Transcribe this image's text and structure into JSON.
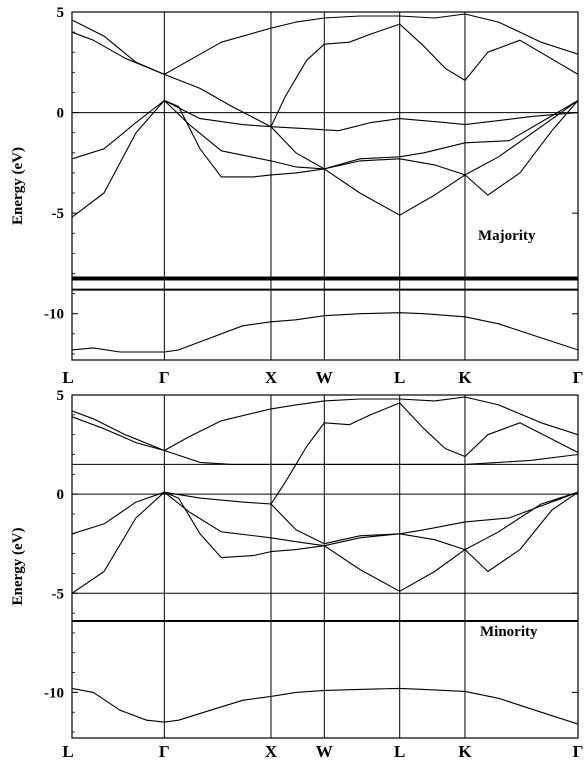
{
  "chart_data": [
    {
      "type": "line",
      "annotation": "Majority",
      "ylabel": "Energy (eV)",
      "ylim": [
        -12.3,
        5
      ],
      "yticks": [
        5,
        0,
        -5,
        -10
      ],
      "kpoints": [
        {
          "label": "L",
          "x": 0
        },
        {
          "label": "Γ",
          "x": 0.866
        },
        {
          "label": "X",
          "x": 1.866
        },
        {
          "label": "W",
          "x": 2.366
        },
        {
          "label": "L",
          "x": 3.073
        },
        {
          "label": "K",
          "x": 3.685
        },
        {
          "label": "Γ",
          "x": 4.745
        }
      ],
      "horizontal_lines": [
        0,
        -8.2,
        -8.3,
        -8.8
      ],
      "series": [
        {
          "x": [
            0,
            0.2,
            0.45,
            0.7,
            0.866,
            1.0,
            1.3,
            1.6,
            1.866,
            2.1,
            2.366,
            2.7,
            3.073,
            3.3,
            3.685,
            4.0,
            4.4,
            4.745
          ],
          "y": [
            -11.8,
            -11.7,
            -11.9,
            -11.9,
            -11.9,
            -11.8,
            -11.2,
            -10.6,
            -10.4,
            -10.3,
            -10.1,
            -10.0,
            -9.95,
            -10.0,
            -10.15,
            -10.5,
            -11.2,
            -11.8
          ]
        },
        {
          "x": [
            0,
            0.3,
            0.6,
            0.866,
            1.1,
            1.4,
            1.866,
            2.1,
            2.366,
            2.7,
            3.073,
            3.4,
            3.685,
            4.0,
            4.4,
            4.745
          ],
          "y": [
            -5.2,
            -4.0,
            -1.0,
            0.6,
            -0.6,
            -1.9,
            -2.4,
            -2.7,
            -2.8,
            -2.4,
            -2.3,
            -2.6,
            -3.1,
            -2.2,
            -0.7,
            0.6
          ]
        },
        {
          "x": [
            0,
            0.3,
            0.6,
            0.866,
            1.0,
            1.2,
            1.4,
            1.7,
            1.866,
            2.1,
            2.366,
            2.7,
            3.073,
            3.4,
            3.685,
            3.9,
            4.2,
            4.5,
            4.745
          ],
          "y": [
            -2.3,
            -1.8,
            -0.5,
            0.6,
            0.3,
            -1.8,
            -3.2,
            -3.2,
            -3.1,
            -3.0,
            -2.8,
            -4.0,
            -5.1,
            -4.1,
            -3.1,
            -4.1,
            -3.0,
            -0.9,
            0.6
          ]
        },
        {
          "x": [
            0.866,
            1.2,
            1.6,
            1.866,
            2.1,
            2.366,
            2.7,
            3.073,
            3.3,
            3.685,
            4.1,
            4.745
          ],
          "y": [
            0.6,
            -0.3,
            -0.6,
            -0.7,
            -2.0,
            -2.8,
            -2.3,
            -2.2,
            -2.0,
            -1.5,
            -1.4,
            0.6
          ]
        },
        {
          "x": [
            1.866,
            2.0,
            2.2,
            2.366,
            2.6,
            2.8,
            3.073,
            3.3,
            3.5,
            3.685,
            3.9,
            4.2,
            4.745
          ],
          "y": [
            -0.7,
            0.8,
            2.6,
            3.4,
            3.5,
            3.9,
            4.4,
            3.3,
            2.2,
            1.6,
            3.0,
            3.6,
            1.9
          ]
        },
        {
          "x": [
            0,
            0.2,
            0.5,
            0.866,
            1.1,
            1.4,
            1.866,
            2.1,
            2.366,
            2.7,
            3.073,
            3.4,
            3.685,
            4.0,
            4.4,
            4.745
          ],
          "y": [
            4.0,
            3.6,
            2.7,
            1.9,
            2.6,
            3.5,
            4.2,
            4.5,
            4.7,
            4.8,
            4.8,
            4.7,
            4.9,
            4.5,
            3.5,
            2.9
          ]
        },
        {
          "x": [
            0,
            0.3,
            0.6,
            0.866,
            1.2,
            1.5,
            1.866,
            2.2,
            2.5,
            2.8,
            3.073,
            3.5,
            3.685,
            4.0,
            4.3,
            4.745
          ],
          "y": [
            4.6,
            3.8,
            2.5,
            1.9,
            1.2,
            0.3,
            -0.7,
            -0.8,
            -0.9,
            -0.5,
            -0.3,
            -0.5,
            -0.6,
            -0.4,
            -0.2,
            0.0
          ]
        }
      ]
    },
    {
      "type": "line",
      "annotation": "Minority",
      "ylabel": "Energy (eV)",
      "ylim": [
        -12.3,
        5
      ],
      "yticks": [
        5,
        0,
        -5,
        -10
      ],
      "kpoints": [
        {
          "label": "L",
          "x": 0
        },
        {
          "label": "Γ",
          "x": 0.866
        },
        {
          "label": "X",
          "x": 1.866
        },
        {
          "label": "W",
          "x": 2.366
        },
        {
          "label": "L",
          "x": 3.073
        },
        {
          "label": "K",
          "x": 3.685
        },
        {
          "label": "Γ",
          "x": 4.745
        }
      ],
      "horizontal_lines": [
        0,
        1.5,
        -5.0,
        -6.4
      ],
      "series": [
        {
          "x": [
            0,
            0.2,
            0.45,
            0.7,
            0.866,
            1.0,
            1.3,
            1.6,
            1.866,
            2.1,
            2.366,
            2.7,
            3.073,
            3.3,
            3.685,
            4.0,
            4.4,
            4.745
          ],
          "y": [
            -9.8,
            -10.0,
            -10.9,
            -11.4,
            -11.5,
            -11.4,
            -10.9,
            -10.4,
            -10.2,
            -10.0,
            -9.9,
            -9.85,
            -9.8,
            -9.85,
            -9.95,
            -10.3,
            -11.0,
            -11.6
          ]
        },
        {
          "x": [
            0,
            0.3,
            0.6,
            0.866,
            1.1,
            1.4,
            1.866,
            2.1,
            2.366,
            2.7,
            3.073,
            3.4,
            3.685,
            4.0,
            4.4,
            4.745
          ],
          "y": [
            -5.0,
            -3.9,
            -1.2,
            0.1,
            -0.9,
            -1.9,
            -2.2,
            -2.4,
            -2.6,
            -2.2,
            -2.0,
            -2.3,
            -2.8,
            -1.9,
            -0.5,
            0.1
          ]
        },
        {
          "x": [
            0,
            0.3,
            0.6,
            0.866,
            1.0,
            1.2,
            1.4,
            1.7,
            1.866,
            2.1,
            2.366,
            2.7,
            3.073,
            3.4,
            3.685,
            3.9,
            4.2,
            4.5,
            4.745
          ],
          "y": [
            -2.0,
            -1.5,
            -0.4,
            0.1,
            -0.2,
            -2.0,
            -3.2,
            -3.1,
            -2.9,
            -2.8,
            -2.6,
            -3.8,
            -4.9,
            -3.9,
            -2.8,
            -3.9,
            -2.8,
            -0.8,
            0.1
          ]
        },
        {
          "x": [
            0.866,
            1.2,
            1.6,
            1.866,
            2.1,
            2.366,
            2.7,
            3.073,
            3.3,
            3.685,
            4.1,
            4.745
          ],
          "y": [
            0.1,
            -0.2,
            -0.4,
            -0.5,
            -1.8,
            -2.5,
            -2.1,
            -2.0,
            -1.8,
            -1.4,
            -1.2,
            0.1
          ]
        },
        {
          "x": [
            1.866,
            2.0,
            2.2,
            2.366,
            2.6,
            2.8,
            3.073,
            3.3,
            3.5,
            3.685,
            3.9,
            4.2,
            4.745
          ],
          "y": [
            -0.5,
            0.6,
            2.4,
            3.6,
            3.5,
            4.0,
            4.6,
            3.3,
            2.3,
            1.9,
            3.0,
            3.6,
            2.1
          ]
        },
        {
          "x": [
            0,
            0.2,
            0.5,
            0.866,
            1.1,
            1.4,
            1.866,
            2.1,
            2.366,
            2.7,
            3.073,
            3.4,
            3.685,
            4.0,
            4.4,
            4.745
          ],
          "y": [
            4.2,
            3.8,
            3.0,
            2.2,
            2.9,
            3.7,
            4.3,
            4.5,
            4.7,
            4.8,
            4.8,
            4.7,
            4.9,
            4.5,
            3.6,
            3.0
          ]
        },
        {
          "x": [
            0,
            0.3,
            0.6,
            0.866,
            1.2,
            1.5,
            1.866,
            2.2,
            2.5,
            2.8,
            3.073,
            3.5,
            3.685,
            4.0,
            4.3,
            4.745
          ],
          "y": [
            3.9,
            3.3,
            2.6,
            2.2,
            1.6,
            1.5,
            1.5,
            1.5,
            1.5,
            1.5,
            1.5,
            1.5,
            1.5,
            1.6,
            1.7,
            2.0
          ]
        }
      ]
    }
  ]
}
